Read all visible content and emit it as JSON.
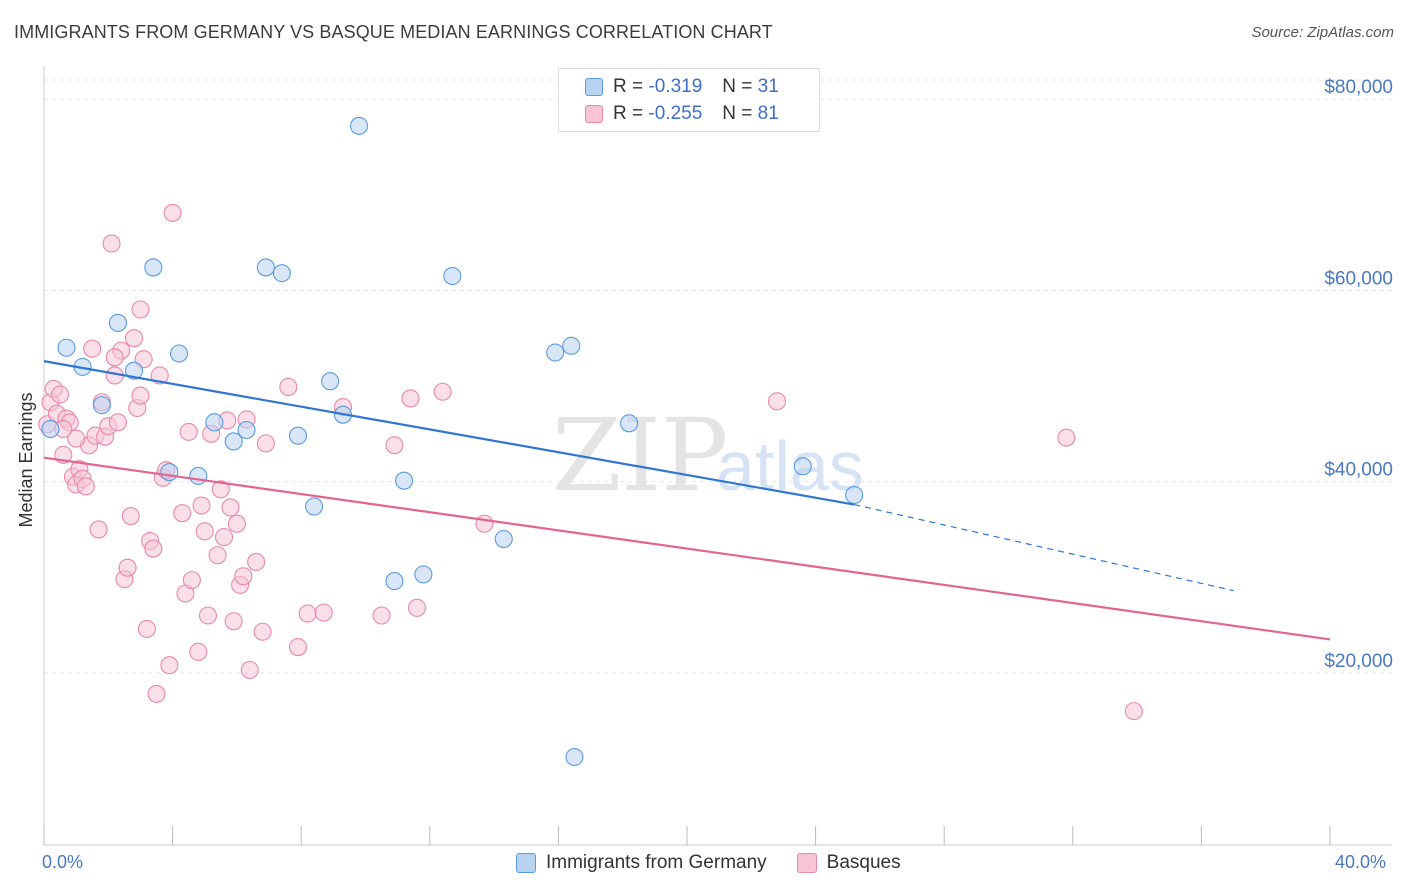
{
  "title": "IMMIGRANTS FROM GERMANY VS BASQUE MEDIAN EARNINGS CORRELATION CHART",
  "source": "Source: ZipAtlas.com",
  "colors": {
    "blue": "#5b9be0",
    "blue_fill": "#b8d2f2",
    "blue_line": "#2f76d2",
    "pink": "#e889a8",
    "pink_fill": "#f6c4d5",
    "pink_line": "#e2648f",
    "grid": "#e6e6e6",
    "axis_text": "#4a78c4"
  },
  "legend": {
    "rows": [
      {
        "r_label": "R = ",
        "r_value": "-0.319",
        "n_label": "N = ",
        "n_value": "31"
      },
      {
        "r_label": "R = ",
        "r_value": "-0.255",
        "n_label": "N = ",
        "n_value": "81"
      }
    ]
  },
  "bottom_legend": [
    "Immigrants from Germany",
    "Basques"
  ],
  "x_axis": {
    "min_label": "0.0%",
    "max_label": "40.0%"
  },
  "watermark": {
    "zip": "ZIP",
    "atlas": "atlas"
  },
  "chart_data": {
    "type": "scatter",
    "title": "IMMIGRANTS FROM GERMANY VS BASQUE MEDIAN EARNINGS CORRELATION CHART",
    "xlabel": "",
    "ylabel": "Median Earnings",
    "xlim": [
      0,
      40
    ],
    "ylim": [
      2000,
      82000
    ],
    "yticks": [
      20000,
      40000,
      60000,
      80000
    ],
    "ytick_labels": [
      "$20,000",
      "$40,000",
      "$60,000",
      "$80,000"
    ],
    "grid": true,
    "legend_placement": "top-center",
    "series": [
      {
        "name": "Immigrants from Germany",
        "r": -0.319,
        "n": 31,
        "trend": {
          "x0": 0,
          "y0": 52600,
          "x1": 25.2,
          "y1": 37600,
          "dash_to_x": 37,
          "dash_to_y": 28600
        },
        "points": [
          [
            0.2,
            45500
          ],
          [
            0.7,
            54000
          ],
          [
            1.2,
            52000
          ],
          [
            1.8,
            48000
          ],
          [
            2.3,
            56600
          ],
          [
            2.8,
            51600
          ],
          [
            3.4,
            62400
          ],
          [
            3.9,
            41000
          ],
          [
            4.2,
            53400
          ],
          [
            4.8,
            40600
          ],
          [
            5.3,
            46200
          ],
          [
            5.9,
            44200
          ],
          [
            6.3,
            45400
          ],
          [
            6.9,
            62400
          ],
          [
            7.4,
            61800
          ],
          [
            7.9,
            44800
          ],
          [
            8.4,
            37400
          ],
          [
            8.9,
            50500
          ],
          [
            9.3,
            47000
          ],
          [
            9.8,
            77200
          ],
          [
            10.9,
            29600
          ],
          [
            11.2,
            40100
          ],
          [
            11.8,
            30300
          ],
          [
            12.7,
            61500
          ],
          [
            14.3,
            34000
          ],
          [
            15.9,
            53500
          ],
          [
            16.4,
            54200
          ],
          [
            16.5,
            11200
          ],
          [
            18.2,
            46100
          ],
          [
            23.6,
            41600
          ],
          [
            25.2,
            38600
          ]
        ]
      },
      {
        "name": "Basques",
        "r": -0.255,
        "n": 81,
        "trend": {
          "x0": 0,
          "y0": 42500,
          "x1": 40,
          "y1": 23500
        },
        "points": [
          [
            0.1,
            46000
          ],
          [
            0.2,
            48300
          ],
          [
            0.3,
            49700
          ],
          [
            0.4,
            47100
          ],
          [
            0.5,
            49100
          ],
          [
            0.6,
            42800
          ],
          [
            0.7,
            46600
          ],
          [
            0.8,
            46200
          ],
          [
            0.9,
            40500
          ],
          [
            1.0,
            39700
          ],
          [
            1.1,
            41300
          ],
          [
            1.2,
            40300
          ],
          [
            1.3,
            39500
          ],
          [
            1.4,
            43800
          ],
          [
            1.5,
            53900
          ],
          [
            1.6,
            44800
          ],
          [
            1.7,
            35000
          ],
          [
            1.8,
            48300
          ],
          [
            1.9,
            44700
          ],
          [
            2.0,
            45800
          ],
          [
            2.1,
            64900
          ],
          [
            2.2,
            51100
          ],
          [
            2.3,
            46200
          ],
          [
            2.4,
            53700
          ],
          [
            2.5,
            29800
          ],
          [
            2.6,
            31000
          ],
          [
            2.7,
            36400
          ],
          [
            2.8,
            55000
          ],
          [
            2.9,
            47700
          ],
          [
            3.0,
            58000
          ],
          [
            3.1,
            52800
          ],
          [
            3.2,
            24600
          ],
          [
            3.3,
            33800
          ],
          [
            3.4,
            33000
          ],
          [
            3.5,
            17800
          ],
          [
            3.6,
            51100
          ],
          [
            3.7,
            40400
          ],
          [
            3.8,
            41200
          ],
          [
            3.9,
            20800
          ],
          [
            4.0,
            68100
          ],
          [
            4.3,
            36700
          ],
          [
            4.4,
            28300
          ],
          [
            4.5,
            45200
          ],
          [
            4.6,
            29700
          ],
          [
            4.8,
            22200
          ],
          [
            4.9,
            37500
          ],
          [
            5.0,
            34800
          ],
          [
            5.1,
            26000
          ],
          [
            5.2,
            45000
          ],
          [
            5.4,
            32300
          ],
          [
            5.5,
            39200
          ],
          [
            5.6,
            34200
          ],
          [
            5.7,
            46400
          ],
          [
            5.8,
            37300
          ],
          [
            5.9,
            25400
          ],
          [
            6.0,
            35600
          ],
          [
            6.1,
            29200
          ],
          [
            6.2,
            30100
          ],
          [
            6.3,
            46500
          ],
          [
            6.4,
            20300
          ],
          [
            6.6,
            31600
          ],
          [
            6.8,
            24300
          ],
          [
            7.9,
            22700
          ],
          [
            8.2,
            26200
          ],
          [
            8.7,
            26300
          ],
          [
            9.3,
            47800
          ],
          [
            10.5,
            26000
          ],
          [
            10.9,
            43800
          ],
          [
            11.4,
            48700
          ],
          [
            11.6,
            26800
          ],
          [
            12.4,
            49400
          ],
          [
            13.7,
            35600
          ],
          [
            22.8,
            48400
          ],
          [
            31.8,
            44600
          ],
          [
            33.9,
            16000
          ],
          [
            6.9,
            44000
          ],
          [
            7.6,
            49900
          ],
          [
            2.2,
            53000
          ],
          [
            1.0,
            44500
          ],
          [
            0.6,
            45500
          ],
          [
            3.0,
            49000
          ]
        ]
      }
    ]
  }
}
